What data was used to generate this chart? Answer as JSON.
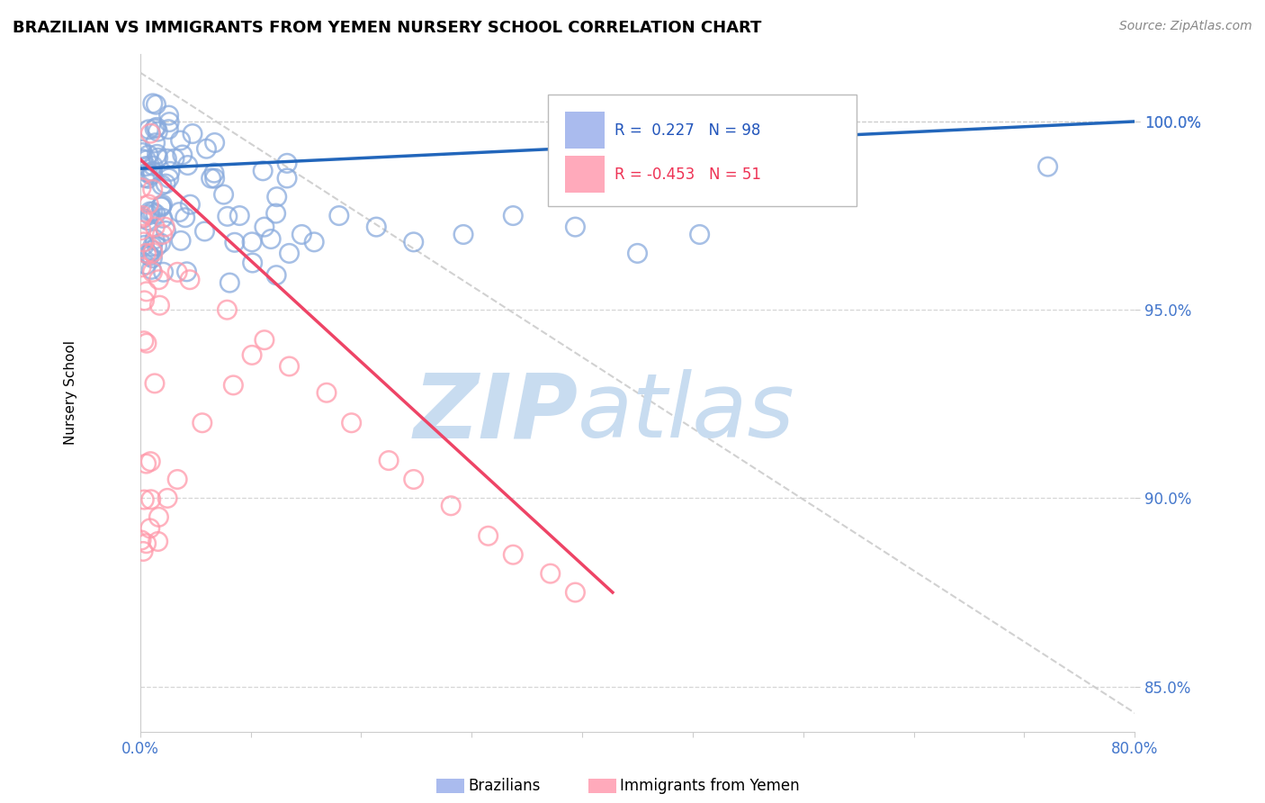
{
  "title": "BRAZILIAN VS IMMIGRANTS FROM YEMEN NURSERY SCHOOL CORRELATION CHART",
  "source": "Source: ZipAtlas.com",
  "ylabel": "Nursery School",
  "ytick_values": [
    0.85,
    0.9,
    0.95,
    1.0
  ],
  "xmin": 0.0,
  "xmax": 0.8,
  "ymin": 0.838,
  "ymax": 1.018,
  "legend_r1_label": "R =  0.227   N = 98",
  "legend_r2_label": "R = -0.453   N = 51",
  "blue_scatter_color": "#88AADD",
  "pink_scatter_color": "#FF99AA",
  "blue_line_color": "#2266BB",
  "pink_line_color": "#EE4466",
  "dash_color": "#CCCCCC",
  "grid_color": "#CCCCCC",
  "ytick_color": "#4477CC",
  "xtick_color": "#4477CC",
  "blue_legend_fill": "#AABBEE",
  "pink_legend_fill": "#FFAABB",
  "watermark_zip_color": "#C8DCF0",
  "watermark_atlas_color": "#C8DCF0"
}
